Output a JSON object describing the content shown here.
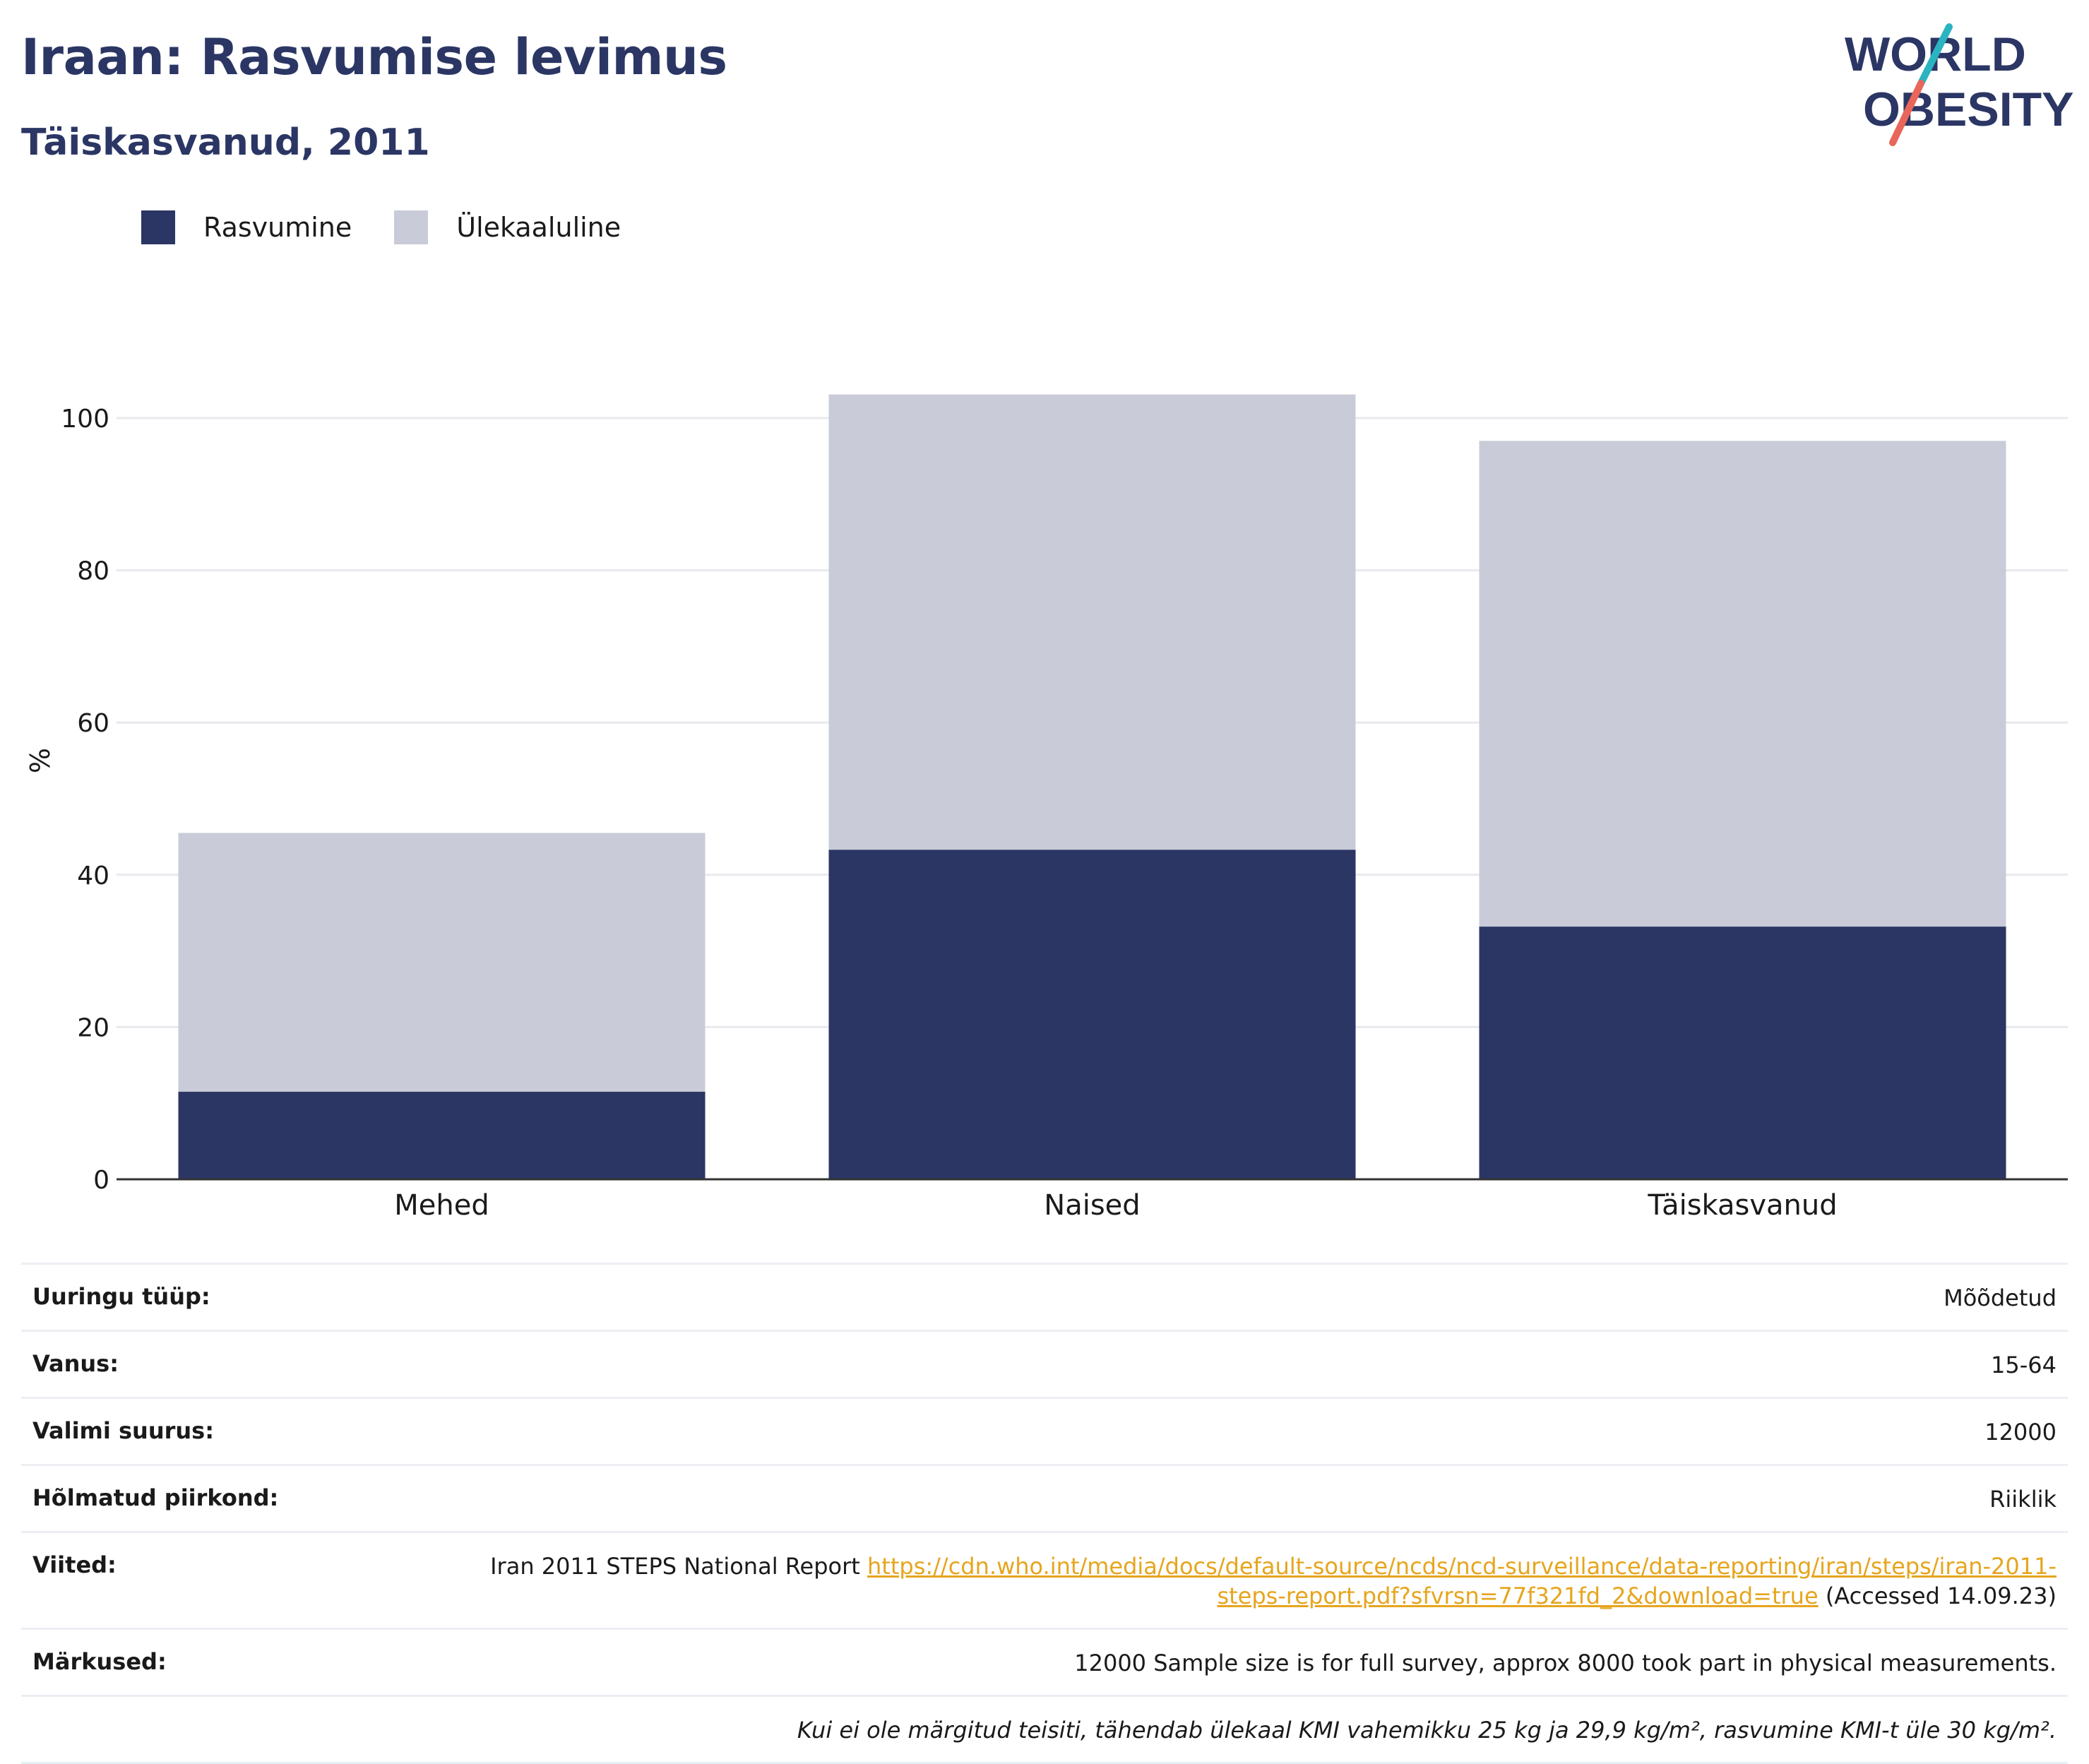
{
  "header": {
    "title": "Iraan: Rasvumise levimus",
    "subtitle": "Täiskasvanud, 2011"
  },
  "logo": {
    "line1": "WORLD",
    "line2": "OBESITY",
    "colors": {
      "text": "#2b3664",
      "slash_top": "#2ab3c0",
      "slash_bottom": "#e8665a"
    }
  },
  "legend": {
    "items": [
      {
        "label": "Rasvumine",
        "color": "#2b3664"
      },
      {
        "label": "Ülekaaluline",
        "color": "#c9ccd8"
      }
    ]
  },
  "chart_data": {
    "type": "bar",
    "stacked": true,
    "categories": [
      "Mehed",
      "Naised",
      "Täiskasvanud"
    ],
    "series": [
      {
        "name": "Rasvumine",
        "color": "#2b3664",
        "values": [
          11.5,
          43.3,
          33.2
        ]
      },
      {
        "name": "Ülekaaluline",
        "color": "#c9ccd8",
        "values": [
          34.0,
          59.8,
          63.8
        ]
      }
    ],
    "ylabel": "%",
    "ylim": [
      0,
      110
    ],
    "yticks": [
      0,
      20,
      40,
      60,
      80,
      100
    ],
    "grid": true,
    "legend_position": "top-left"
  },
  "meta": {
    "rows": [
      {
        "label": "Uuringu tüüp:",
        "value": "Mõõdetud"
      },
      {
        "label": "Vanus:",
        "value": "15-64"
      },
      {
        "label": "Valimi suurus:",
        "value": "12000"
      },
      {
        "label": "Hõlmatud piirkond:",
        "value": "Riiklik"
      }
    ],
    "references": {
      "label": "Viited:",
      "text": "Iran 2011 STEPS National Report",
      "link": "https://cdn.who.int/media/docs/default-source/ncds/ncd-surveillance/data-reporting/iran/steps/iran-2011-steps-report.pdf?sfvrsn=77f321fd_2&download=true",
      "accessed": "(Accessed 14.09.23)"
    },
    "notes": {
      "label": "Märkused:",
      "value": "12000 Sample size is for full survey, approx 8000 took part in physical measurements."
    },
    "footnote": "Kui ei ole märgitud teisiti, tähendab ülekaal KMI vahemikku 25 kg ja 29,9 kg/m², rasvumine KMI-t üle 30 kg/m²."
  }
}
